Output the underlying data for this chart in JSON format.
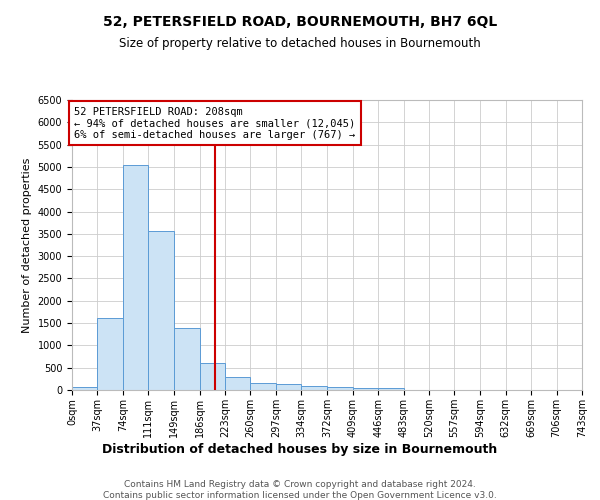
{
  "title": "52, PETERSFIELD ROAD, BOURNEMOUTH, BH7 6QL",
  "subtitle": "Size of property relative to detached houses in Bournemouth",
  "xlabel": "Distribution of detached houses by size in Bournemouth",
  "ylabel": "Number of detached properties",
  "bin_edges": [
    0,
    37,
    74,
    111,
    149,
    186,
    223,
    260,
    297,
    334,
    372,
    409,
    446,
    483,
    520,
    557,
    594,
    632,
    669,
    706,
    743
  ],
  "counts": [
    75,
    1625,
    5050,
    3575,
    1400,
    600,
    300,
    160,
    130,
    100,
    60,
    40,
    55,
    10,
    5,
    3,
    2,
    1,
    1,
    1
  ],
  "bar_facecolor": "#cce3f5",
  "bar_edgecolor": "#5b9bd5",
  "vline_x": 208,
  "vline_color": "#cc0000",
  "annotation_text": "52 PETERSFIELD ROAD: 208sqm\n← 94% of detached houses are smaller (12,045)\n6% of semi-detached houses are larger (767) →",
  "annotation_box_color": "#ffffff",
  "annotation_box_edgecolor": "#cc0000",
  "ylim": [
    0,
    6500
  ],
  "yticks": [
    0,
    500,
    1000,
    1500,
    2000,
    2500,
    3000,
    3500,
    4000,
    4500,
    5000,
    5500,
    6000,
    6500
  ],
  "grid_color": "#cccccc",
  "background_color": "#ffffff",
  "footer_line1": "Contains HM Land Registry data © Crown copyright and database right 2024.",
  "footer_line2": "Contains public sector information licensed under the Open Government Licence v3.0.",
  "title_fontsize": 10,
  "subtitle_fontsize": 8.5,
  "xlabel_fontsize": 9,
  "ylabel_fontsize": 8,
  "tick_fontsize": 7,
  "footer_fontsize": 6.5
}
